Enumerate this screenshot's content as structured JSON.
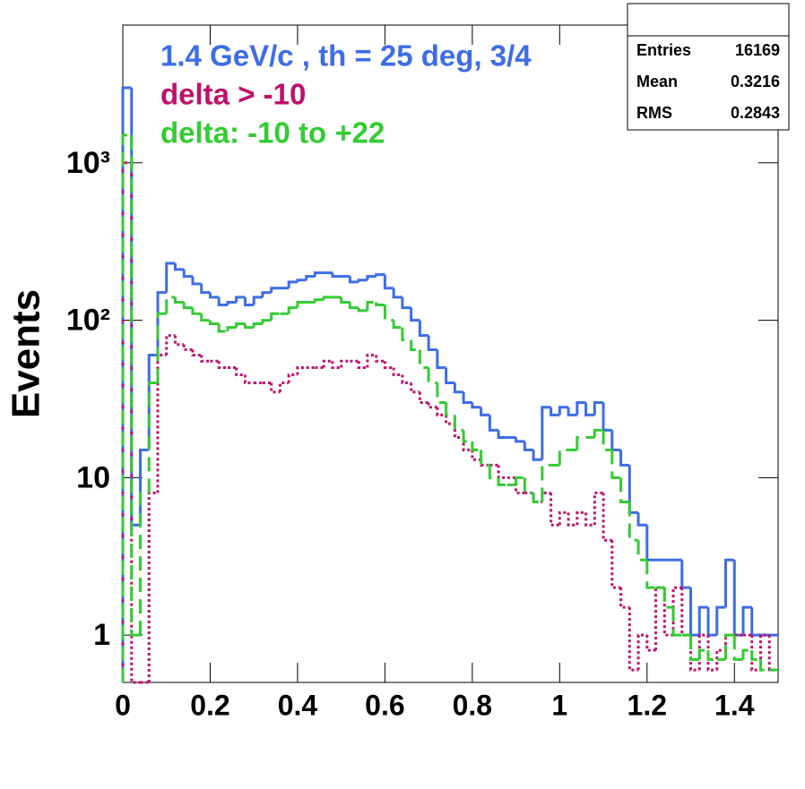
{
  "chart_data": {
    "type": "histogram",
    "y_label": "Events",
    "log_y": true,
    "legend": "upper left",
    "bins": [
      0,
      0.02,
      0.04,
      0.06,
      0.08,
      0.1,
      0.12,
      0.14,
      0.16,
      0.18,
      0.2,
      0.22,
      0.24,
      0.26,
      0.28,
      0.3,
      0.32,
      0.34,
      0.36,
      0.38,
      0.4,
      0.42,
      0.44,
      0.46,
      0.48,
      0.5,
      0.52,
      0.54,
      0.56,
      0.58,
      0.6,
      0.62,
      0.64,
      0.66,
      0.68,
      0.7,
      0.72,
      0.74,
      0.76,
      0.78,
      0.8,
      0.82,
      0.84,
      0.86,
      0.88,
      0.9,
      0.92,
      0.94,
      0.96,
      0.98,
      1,
      1.02,
      1.04,
      1.06,
      1.08,
      1.1,
      1.12,
      1.14,
      1.16,
      1.18,
      1.2,
      1.22,
      1.24,
      1.26,
      1.28,
      1.3,
      1.32,
      1.34,
      1.36,
      1.38,
      1.4,
      1.42,
      1.44,
      1.46,
      1.48,
      1.5
    ],
    "series": [
      {
        "name": "1.4 GeV/c , th = 25 deg, 3/4",
        "color": "#3d6de6",
        "style": "solid",
        "values": [
          3000,
          5,
          15,
          60,
          150,
          230,
          210,
          190,
          170,
          150,
          140,
          125,
          130,
          140,
          125,
          140,
          150,
          160,
          160,
          175,
          180,
          190,
          200,
          200,
          190,
          190,
          175,
          180,
          190,
          195,
          160,
          140,
          120,
          100,
          80,
          65,
          50,
          40,
          35,
          30,
          28,
          25,
          20,
          18,
          18,
          17,
          15,
          13,
          28,
          25,
          28,
          25,
          30,
          25,
          30,
          20,
          15,
          12,
          6,
          5,
          3,
          3,
          3,
          3,
          2,
          1,
          1.5,
          1,
          1.5,
          3,
          1,
          1.5,
          1,
          1,
          1
        ]
      },
      {
        "name": "delta > -10",
        "color": "#c0106a",
        "style": "dotted",
        "values": [
          1000,
          0,
          0,
          8,
          60,
          80,
          70,
          65,
          60,
          55,
          55,
          50,
          50,
          45,
          40,
          40,
          40,
          35,
          40,
          45,
          50,
          50,
          50,
          55,
          50,
          55,
          55,
          50,
          60,
          55,
          50,
          45,
          40,
          35,
          30,
          28,
          25,
          22,
          18,
          15,
          13,
          12,
          12,
          10,
          10,
          8,
          8,
          7,
          8,
          5,
          6,
          5,
          6,
          5,
          8,
          4,
          2,
          1.5,
          0.6,
          1,
          0.8,
          2,
          1,
          2,
          1,
          0.6,
          1,
          0.6,
          0.8,
          1,
          1,
          1,
          0.6,
          1,
          0.6
        ]
      },
      {
        "name": "delta: -10 to +22",
        "color": "#33cc33",
        "style": "dashed",
        "values": [
          1500,
          1,
          8,
          40,
          110,
          140,
          130,
          120,
          110,
          100,
          95,
          85,
          90,
          95,
          90,
          95,
          100,
          110,
          110,
          120,
          130,
          130,
          135,
          140,
          140,
          130,
          120,
          115,
          130,
          125,
          100,
          90,
          75,
          65,
          50,
          40,
          30,
          25,
          20,
          17,
          15,
          12,
          10,
          9,
          9,
          10,
          8,
          7,
          12,
          12,
          15,
          15,
          18,
          18,
          20,
          15,
          10,
          7,
          4,
          3,
          2,
          2,
          1.5,
          1,
          1,
          0.7,
          0.8,
          0.7,
          0.7,
          1,
          0.7,
          0.8,
          0.7,
          0.6,
          0.6
        ]
      }
    ],
    "xlim": [
      0,
      1.5
    ],
    "ylim": [
      0.5,
      7500
    ],
    "xticks": [
      0,
      0.2,
      0.4,
      0.6,
      0.8,
      1,
      1.2,
      1.4
    ],
    "yticks": [
      1,
      10,
      {
        "value": 100,
        "label": "10²"
      },
      {
        "value": 1000,
        "label": "10³"
      }
    ],
    "stats": [
      {
        "label": "Entries",
        "value": 16169
      },
      {
        "label": "Mean",
        "value": 0.3216
      },
      {
        "label": "RMS",
        "value": 0.2843
      }
    ]
  }
}
